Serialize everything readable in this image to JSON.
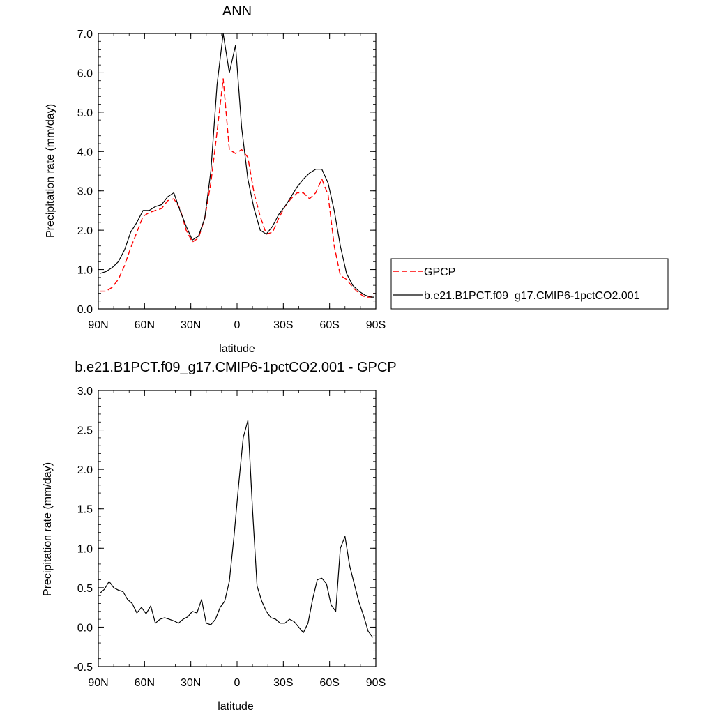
{
  "chart_data": [
    {
      "type": "line",
      "title": "ANN",
      "xlabel": "latitude",
      "ylabel": "Precipitation rate (mm/day)",
      "xlim": [
        90,
        -90
      ],
      "ylim": [
        0.0,
        7.0
      ],
      "xticks": [
        90,
        60,
        30,
        0,
        -30,
        -60,
        -90
      ],
      "xtick_labels": [
        "90N",
        "60N",
        "30N",
        "0",
        "30S",
        "60S",
        "90S"
      ],
      "yticks": [
        0,
        1,
        2,
        3,
        4,
        5,
        6,
        7
      ],
      "ytick_labels": [
        "0.0",
        "1.0",
        "2.0",
        "3.0",
        "4.0",
        "5.0",
        "6.0",
        "7.0"
      ],
      "grid": false,
      "legend_position": "right",
      "series": [
        {
          "name": "GPCP",
          "color": "#ff0000",
          "line_style": "dashed",
          "x": [
            89,
            85,
            81,
            77,
            73,
            69,
            65,
            61,
            57,
            53,
            49,
            45,
            41,
            37,
            33,
            29,
            25,
            21,
            17,
            13,
            9,
            5,
            1,
            -3,
            -7,
            -11,
            -15,
            -19,
            -23,
            -27,
            -31,
            -35,
            -39,
            -43,
            -47,
            -51,
            -55,
            -59,
            -63,
            -67,
            -71,
            -75,
            -79,
            -83,
            -87,
            -89
          ],
          "y": [
            0.45,
            0.45,
            0.55,
            0.75,
            1.1,
            1.55,
            1.95,
            2.35,
            2.45,
            2.5,
            2.55,
            2.75,
            2.8,
            2.55,
            2.0,
            1.7,
            1.8,
            2.3,
            3.2,
            4.5,
            5.85,
            4.05,
            3.95,
            4.05,
            3.85,
            2.95,
            2.35,
            1.9,
            1.95,
            2.3,
            2.6,
            2.8,
            2.95,
            2.95,
            2.8,
            2.95,
            3.3,
            2.9,
            1.6,
            0.85,
            0.75,
            0.55,
            0.4,
            0.3,
            0.3,
            0.4
          ]
        },
        {
          "name": "b.e21.B1PCT.f09_g17.CMIP6-1pctCO2.001",
          "color": "#000000",
          "line_style": "solid",
          "x": [
            89,
            85,
            81,
            77,
            73,
            69,
            65,
            61,
            57,
            53,
            49,
            45,
            41,
            37,
            33,
            29,
            25,
            21,
            17,
            13,
            9,
            5,
            1,
            -3,
            -7,
            -11,
            -15,
            -19,
            -23,
            -27,
            -31,
            -35,
            -39,
            -43,
            -47,
            -51,
            -55,
            -59,
            -63,
            -67,
            -71,
            -75,
            -79,
            -83,
            -87,
            -89
          ],
          "y": [
            0.9,
            0.95,
            1.05,
            1.2,
            1.5,
            1.95,
            2.2,
            2.5,
            2.5,
            2.6,
            2.65,
            2.85,
            2.95,
            2.5,
            2.1,
            1.75,
            1.85,
            2.3,
            3.5,
            5.7,
            7.0,
            6.0,
            6.7,
            4.6,
            3.3,
            2.55,
            2.0,
            1.9,
            2.1,
            2.4,
            2.6,
            2.85,
            3.1,
            3.3,
            3.45,
            3.55,
            3.55,
            3.2,
            2.5,
            1.6,
            0.9,
            0.6,
            0.45,
            0.35,
            0.3,
            0.3
          ]
        }
      ]
    },
    {
      "type": "line",
      "title": "b.e21.B1PCT.f09_g17.CMIP6-1pctCO2.001 - GPCP",
      "xlabel": "latitude",
      "ylabel": "Precipitation rate (mm/day)",
      "xlim": [
        90,
        -90
      ],
      "ylim": [
        -0.5,
        3.0
      ],
      "xticks": [
        90,
        60,
        30,
        0,
        -30,
        -60,
        -90
      ],
      "xtick_labels": [
        "90N",
        "60N",
        "30N",
        "0",
        "30S",
        "60S",
        "90S"
      ],
      "yticks": [
        -0.5,
        0.0,
        0.5,
        1.0,
        1.5,
        2.0,
        2.5,
        3.0
      ],
      "ytick_labels": [
        "-0.5",
        "0.0",
        "0.5",
        "1.0",
        "1.5",
        "2.0",
        "2.5",
        "3.0"
      ],
      "grid": false,
      "series": [
        {
          "color": "#000000",
          "line_style": "solid",
          "x": [
            89,
            86,
            83,
            80,
            77,
            74,
            71,
            68,
            65,
            62,
            59,
            56,
            53,
            50,
            47,
            44,
            41,
            38,
            35,
            32,
            29,
            26,
            23,
            20,
            17,
            14,
            11,
            8,
            5,
            2,
            -1,
            -4,
            -7,
            -10,
            -13,
            -16,
            -19,
            -22,
            -25,
            -28,
            -31,
            -34,
            -37,
            -40,
            -43,
            -46,
            -49,
            -52,
            -55,
            -58,
            -61,
            -64,
            -67,
            -70,
            -73,
            -76,
            -79,
            -82,
            -85,
            -88
          ],
          "y": [
            0.43,
            0.48,
            0.58,
            0.5,
            0.47,
            0.45,
            0.35,
            0.3,
            0.18,
            0.25,
            0.17,
            0.27,
            0.05,
            0.1,
            0.12,
            0.1,
            0.08,
            0.05,
            0.1,
            0.13,
            0.2,
            0.18,
            0.35,
            0.05,
            0.03,
            0.1,
            0.25,
            0.33,
            0.58,
            1.15,
            1.8,
            2.4,
            2.62,
            1.5,
            0.52,
            0.33,
            0.2,
            0.12,
            0.1,
            0.05,
            0.05,
            0.1,
            0.07,
            0.0,
            -0.07,
            0.05,
            0.35,
            0.6,
            0.62,
            0.55,
            0.28,
            0.2,
            1.0,
            1.15,
            0.78,
            0.55,
            0.32,
            0.15,
            -0.05,
            -0.13
          ]
        }
      ]
    }
  ],
  "legend": {
    "items": [
      {
        "label": "GPCP",
        "color": "#ff0000",
        "line_style": "dashed"
      },
      {
        "label": "b.e21.B1PCT.f09_g17.CMIP6-1pctCO2.001",
        "color": "#000000",
        "line_style": "solid"
      }
    ]
  }
}
